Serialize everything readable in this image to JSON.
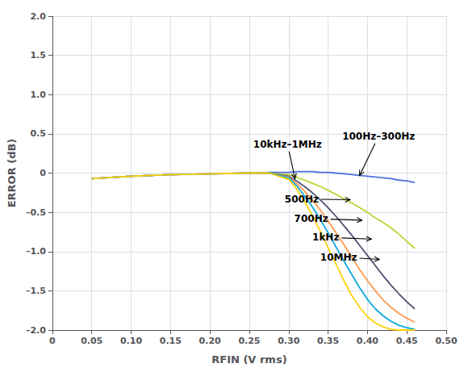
{
  "chart_data": {
    "type": "line",
    "xlabel": "RFIN (V rms)",
    "ylabel": "ERROR (dB)",
    "xlim": [
      0,
      0.5
    ],
    "ylim": [
      -2.0,
      2.0
    ],
    "xticks": [
      0,
      0.05,
      {
        "value": 0.1,
        "label": "0.10"
      },
      0.15,
      {
        "value": 0.2,
        "label": "0.20"
      },
      0.25,
      {
        "value": 0.3,
        "label": "0.30"
      },
      0.35,
      {
        "value": 0.4,
        "label": "0.40"
      },
      0.45,
      {
        "value": 0.5,
        "label": "0.50"
      }
    ],
    "yticks": [
      {
        "value": -2.0,
        "label": "–2.0"
      },
      {
        "value": -1.5,
        "label": "–1.5"
      },
      {
        "value": -1.0,
        "label": "–1.0"
      },
      {
        "value": -0.5,
        "label": "–0.5"
      },
      0,
      0.5,
      {
        "value": 1.0,
        "label": "1.0"
      },
      1.5,
      {
        "value": 2.0,
        "label": "2.0"
      }
    ],
    "grid": true,
    "x": [
      0.05,
      0.1,
      0.15,
      0.2,
      0.25,
      0.275,
      0.3,
      0.31,
      0.32,
      0.33,
      0.34,
      0.35,
      0.36,
      0.37,
      0.38,
      0.39,
      0.4,
      0.41,
      0.42,
      0.43,
      0.44,
      0.45,
      0.46
    ],
    "series": [
      {
        "values": [
          -0.07,
          -0.04,
          -0.02,
          -0.01,
          0.0,
          0.01,
          0.01,
          0.02,
          0.02,
          0.02,
          0.01,
          0.01,
          0.0,
          -0.01,
          -0.02,
          -0.03,
          -0.04,
          -0.05,
          -0.06,
          -0.07,
          -0.09,
          -0.1,
          -0.12
        ]
      },
      {
        "values": [
          -0.07,
          -0.04,
          -0.02,
          -0.01,
          0.0,
          0.0,
          -0.02,
          -0.05,
          -0.09,
          -0.13,
          -0.17,
          -0.22,
          -0.27,
          -0.33,
          -0.38,
          -0.44,
          -0.5,
          -0.57,
          -0.63,
          -0.7,
          -0.78,
          -0.87,
          -0.96
        ]
      },
      {
        "values": [
          -0.07,
          -0.04,
          -0.02,
          -0.01,
          0.0,
          0.0,
          -0.04,
          -0.1,
          -0.17,
          -0.25,
          -0.34,
          -0.44,
          -0.55,
          -0.67,
          -0.79,
          -0.92,
          -1.05,
          -1.18,
          -1.31,
          -1.43,
          -1.54,
          -1.64,
          -1.73
        ]
      },
      {
        "values": [
          -0.07,
          -0.04,
          -0.02,
          -0.01,
          0.0,
          0.0,
          -0.05,
          -0.13,
          -0.23,
          -0.34,
          -0.47,
          -0.61,
          -0.76,
          -0.91,
          -1.07,
          -1.23,
          -1.37,
          -1.5,
          -1.62,
          -1.71,
          -1.79,
          -1.85,
          -1.9
        ]
      },
      {
        "values": [
          -0.07,
          -0.04,
          -0.02,
          -0.01,
          0.0,
          0.0,
          -0.06,
          -0.16,
          -0.29,
          -0.43,
          -0.59,
          -0.76,
          -0.94,
          -1.12,
          -1.29,
          -1.46,
          -1.61,
          -1.73,
          -1.82,
          -1.89,
          -1.94,
          -1.97,
          -1.99
        ]
      },
      {
        "values": [
          -0.07,
          -0.04,
          -0.02,
          -0.01,
          0.0,
          0.0,
          -0.08,
          -0.2,
          -0.36,
          -0.54,
          -0.74,
          -0.95,
          -1.16,
          -1.37,
          -1.56,
          -1.71,
          -1.83,
          -1.91,
          -1.96,
          -1.99,
          -2.0,
          -2.0,
          -2.0
        ]
      }
    ],
    "annotations": [
      {
        "text": "10kHz–1MHz",
        "xy": [
          0.308,
          -0.07
        ],
        "xytext": [
          0.255,
          0.37
        ]
      },
      {
        "text": "100Hz–300Hz",
        "xy": [
          0.39,
          -0.03
        ],
        "xytext": [
          0.368,
          0.47
        ]
      },
      {
        "text": "500Hz",
        "xy": [
          0.378,
          -0.34
        ],
        "xytext": [
          0.295,
          -0.33
        ]
      },
      {
        "text": "700Hz",
        "xy": [
          0.393,
          -0.6
        ],
        "xytext": [
          0.307,
          -0.58
        ]
      },
      {
        "text": "1kHz",
        "xy": [
          0.405,
          -0.84
        ],
        "xytext": [
          0.33,
          -0.82
        ]
      },
      {
        "text": "10MHz",
        "xy": [
          0.415,
          -1.1
        ],
        "xytext": [
          0.34,
          -1.07
        ]
      }
    ]
  }
}
